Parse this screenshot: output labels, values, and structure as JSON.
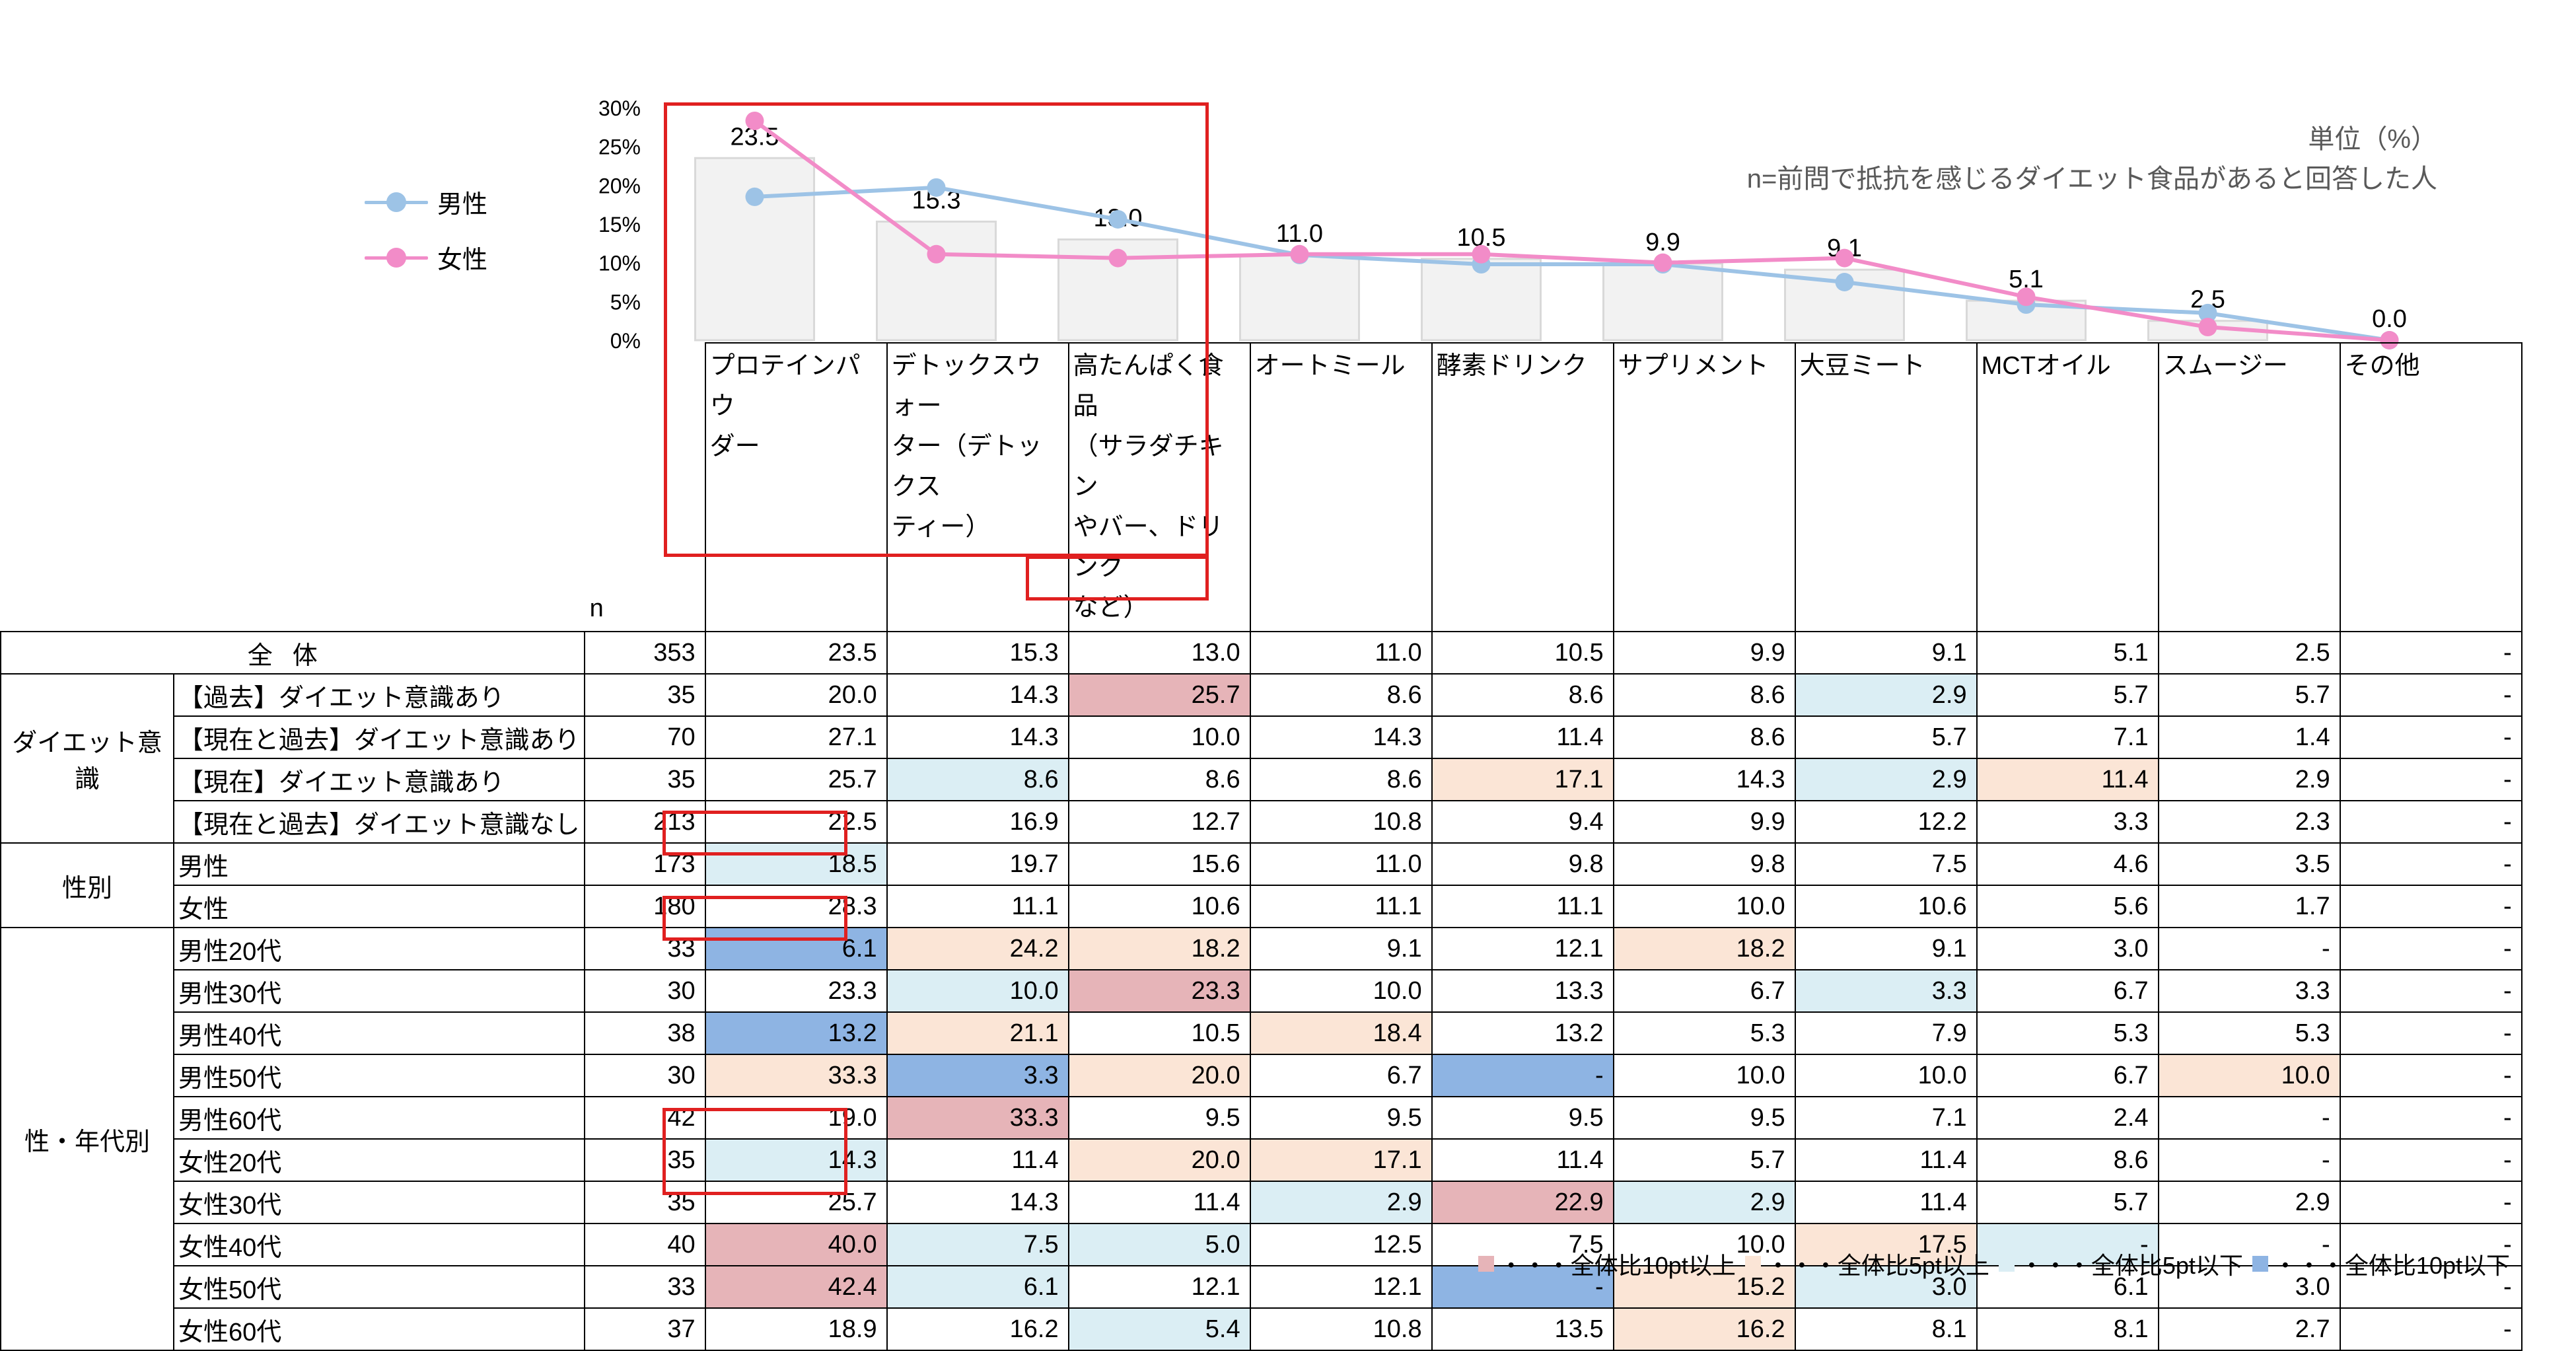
{
  "chart_data": {
    "type": "bar+line",
    "categories": [
      "プロテインパウダー",
      "デトックスウォーター（デトックスティー）",
      "高たんぱく食品（サラダチキンやバー、ドリンクなど）",
      "オートミール",
      "酵素ドリンク",
      "サプリメント",
      "大豆ミート",
      "MCTオイル",
      "スムージー",
      "その他"
    ],
    "category_lines": [
      [
        "プロテインパウ",
        "ダー"
      ],
      [
        "デトックスウォー",
        "ター（デトックス",
        "ティー）"
      ],
      [
        "高たんぱく食品",
        "（サラダチキン",
        "やバー、ドリンク",
        "など）"
      ],
      [
        "オートミール"
      ],
      [
        "酵素ドリンク"
      ],
      [
        "サプリメント"
      ],
      [
        "大豆ミート"
      ],
      [
        "MCTオイル"
      ],
      [
        "スムージー"
      ],
      [
        "その他"
      ]
    ],
    "bar_values": [
      23.5,
      15.3,
      13.0,
      11.0,
      10.5,
      9.9,
      9.1,
      5.1,
      2.5,
      0.0
    ],
    "bar_labels": [
      "23.5",
      "15.3",
      "13.0",
      "11.0",
      "10.5",
      "9.9",
      "9.1",
      "5.1",
      "2.5",
      "0.0"
    ],
    "series": [
      {
        "name": "男性",
        "color": "#9dc3e6",
        "values": [
          18.5,
          19.7,
          15.6,
          11.0,
          9.8,
          9.8,
          7.5,
          4.6,
          3.5,
          0.0
        ]
      },
      {
        "name": "女性",
        "color": "#f28cc8",
        "values": [
          28.3,
          11.1,
          10.6,
          11.1,
          11.1,
          10.0,
          10.6,
          5.6,
          1.7,
          0.0
        ]
      }
    ],
    "y_ticks": [
      "0%",
      "5%",
      "10%",
      "15%",
      "20%",
      "25%",
      "30%"
    ],
    "ylim": [
      0,
      30
    ],
    "bar_color": "#f2f2f2",
    "bar_border": "#d9d9d9"
  },
  "unit": "単位（%）",
  "note": "n=前問で抵抗を感じるダイエット食品があると回答した人",
  "n_header": "n",
  "legend": [
    {
      "label": "男性",
      "color": "#9dc3e6"
    },
    {
      "label": "女性",
      "color": "#f28cc8"
    }
  ],
  "total_row": {
    "label": "全体",
    "n": "353",
    "values": [
      "23.5",
      "15.3",
      "13.0",
      "11.0",
      "10.5",
      "9.9",
      "9.1",
      "5.1",
      "2.5",
      "-"
    ]
  },
  "groups": [
    {
      "label": "ダイエット意識",
      "rows": [
        {
          "label": "【過去】ダイエット意識あり",
          "n": "35",
          "values": [
            "20.0",
            "14.3",
            "25.7",
            "8.6",
            "8.6",
            "8.6",
            "2.9",
            "5.7",
            "5.7",
            "-"
          ],
          "colors": [
            "",
            "",
            "dr",
            "",
            "",
            "",
            "lb",
            "",
            "",
            ""
          ]
        },
        {
          "label": "【現在と過去】ダイエット意識あり",
          "n": "70",
          "values": [
            "27.1",
            "14.3",
            "10.0",
            "14.3",
            "11.4",
            "8.6",
            "5.7",
            "7.1",
            "1.4",
            "-"
          ],
          "colors": [
            "",
            "",
            "",
            "",
            "",
            "",
            "",
            "",
            "",
            ""
          ]
        },
        {
          "label": "【現在】ダイエット意識あり",
          "n": "35",
          "values": [
            "25.7",
            "8.6",
            "8.6",
            "8.6",
            "17.1",
            "14.3",
            "2.9",
            "11.4",
            "2.9",
            "-"
          ],
          "colors": [
            "",
            "lb",
            "",
            "",
            "lo",
            "",
            "lb",
            "lo",
            "",
            ""
          ]
        },
        {
          "label": "【現在と過去】ダイエット意識なし",
          "n": "213",
          "values": [
            "22.5",
            "16.9",
            "12.7",
            "10.8",
            "9.4",
            "9.9",
            "12.2",
            "3.3",
            "2.3",
            "-"
          ],
          "colors": [
            "",
            "",
            "",
            "",
            "",
            "",
            "",
            "",
            "",
            ""
          ]
        }
      ]
    },
    {
      "label": "性別",
      "rows": [
        {
          "label": "男性",
          "n": "173",
          "values": [
            "18.5",
            "19.7",
            "15.6",
            "11.0",
            "9.8",
            "9.8",
            "7.5",
            "4.6",
            "3.5",
            "-"
          ],
          "colors": [
            "lb",
            "",
            "",
            "",
            "",
            "",
            "",
            "",
            "",
            ""
          ]
        },
        {
          "label": "女性",
          "n": "180",
          "values": [
            "28.3",
            "11.1",
            "10.6",
            "11.1",
            "11.1",
            "10.0",
            "10.6",
            "5.6",
            "1.7",
            "-"
          ],
          "colors": [
            "",
            "",
            "",
            "",
            "",
            "",
            "",
            "",
            "",
            ""
          ]
        }
      ]
    },
    {
      "label": "性・年代別",
      "rows": [
        {
          "label": "男性20代",
          "n": "33",
          "values": [
            "6.1",
            "24.2",
            "18.2",
            "9.1",
            "12.1",
            "18.2",
            "9.1",
            "3.0",
            "-",
            "-"
          ],
          "colors": [
            "db",
            "lo",
            "lo",
            "",
            "",
            "lo",
            "",
            "",
            "",
            ""
          ]
        },
        {
          "label": "男性30代",
          "n": "30",
          "values": [
            "23.3",
            "10.0",
            "23.3",
            "10.0",
            "13.3",
            "6.7",
            "3.3",
            "6.7",
            "3.3",
            "-"
          ],
          "colors": [
            "",
            "lb",
            "dr",
            "",
            "",
            "",
            "lb",
            "",
            "",
            ""
          ]
        },
        {
          "label": "男性40代",
          "n": "38",
          "values": [
            "13.2",
            "21.1",
            "10.5",
            "18.4",
            "13.2",
            "5.3",
            "7.9",
            "5.3",
            "5.3",
            "-"
          ],
          "colors": [
            "db",
            "lo",
            "",
            "lo",
            "",
            "",
            "",
            "",
            "",
            ""
          ]
        },
        {
          "label": "男性50代",
          "n": "30",
          "values": [
            "33.3",
            "3.3",
            "20.0",
            "6.7",
            "-",
            "10.0",
            "10.0",
            "6.7",
            "10.0",
            "-"
          ],
          "colors": [
            "lo",
            "db",
            "lo",
            "",
            "db",
            "",
            "",
            "",
            "lo",
            ""
          ]
        },
        {
          "label": "男性60代",
          "n": "42",
          "values": [
            "19.0",
            "33.3",
            "9.5",
            "9.5",
            "9.5",
            "9.5",
            "7.1",
            "2.4",
            "-",
            "-"
          ],
          "colors": [
            "",
            "dr",
            "",
            "",
            "",
            "",
            "",
            "",
            "",
            ""
          ]
        },
        {
          "label": "女性20代",
          "n": "35",
          "values": [
            "14.3",
            "11.4",
            "20.0",
            "17.1",
            "11.4",
            "5.7",
            "11.4",
            "8.6",
            "-",
            "-"
          ],
          "colors": [
            "lb",
            "",
            "lo",
            "lo",
            "",
            "",
            "",
            "",
            "",
            ""
          ]
        },
        {
          "label": "女性30代",
          "n": "35",
          "values": [
            "25.7",
            "14.3",
            "11.4",
            "2.9",
            "22.9",
            "2.9",
            "11.4",
            "5.7",
            "2.9",
            "-"
          ],
          "colors": [
            "",
            "",
            "",
            "lb",
            "dr",
            "lb",
            "",
            "",
            "",
            ""
          ]
        },
        {
          "label": "女性40代",
          "n": "40",
          "values": [
            "40.0",
            "7.5",
            "5.0",
            "12.5",
            "7.5",
            "10.0",
            "17.5",
            "-",
            "-",
            "-"
          ],
          "colors": [
            "dr",
            "lb",
            "lb",
            "",
            "",
            "",
            "lo",
            "lb",
            "",
            ""
          ]
        },
        {
          "label": "女性50代",
          "n": "33",
          "values": [
            "42.4",
            "6.1",
            "12.1",
            "12.1",
            "-",
            "15.2",
            "3.0",
            "6.1",
            "3.0",
            "-"
          ],
          "colors": [
            "dr",
            "lb",
            "",
            "",
            "db",
            "lo",
            "lb",
            "",
            "",
            ""
          ]
        },
        {
          "label": "女性60代",
          "n": "37",
          "values": [
            "18.9",
            "16.2",
            "5.4",
            "10.8",
            "13.5",
            "16.2",
            "8.1",
            "8.1",
            "2.7",
            "-"
          ],
          "colors": [
            "",
            "",
            "lb",
            "",
            "",
            "lo",
            "",
            "",
            "",
            ""
          ]
        }
      ]
    }
  ],
  "footer_legend": [
    {
      "color": "#e6b4b8",
      "text": "・・・全体比10pt以上"
    },
    {
      "color": "#fbe5d6",
      "text": "・・・全体比5pt以上"
    },
    {
      "color": "#dbeef4",
      "text": "・・・全体比5pt以下"
    },
    {
      "color": "#8eb4e3",
      "text": "・・・全体比10pt以下"
    }
  ]
}
